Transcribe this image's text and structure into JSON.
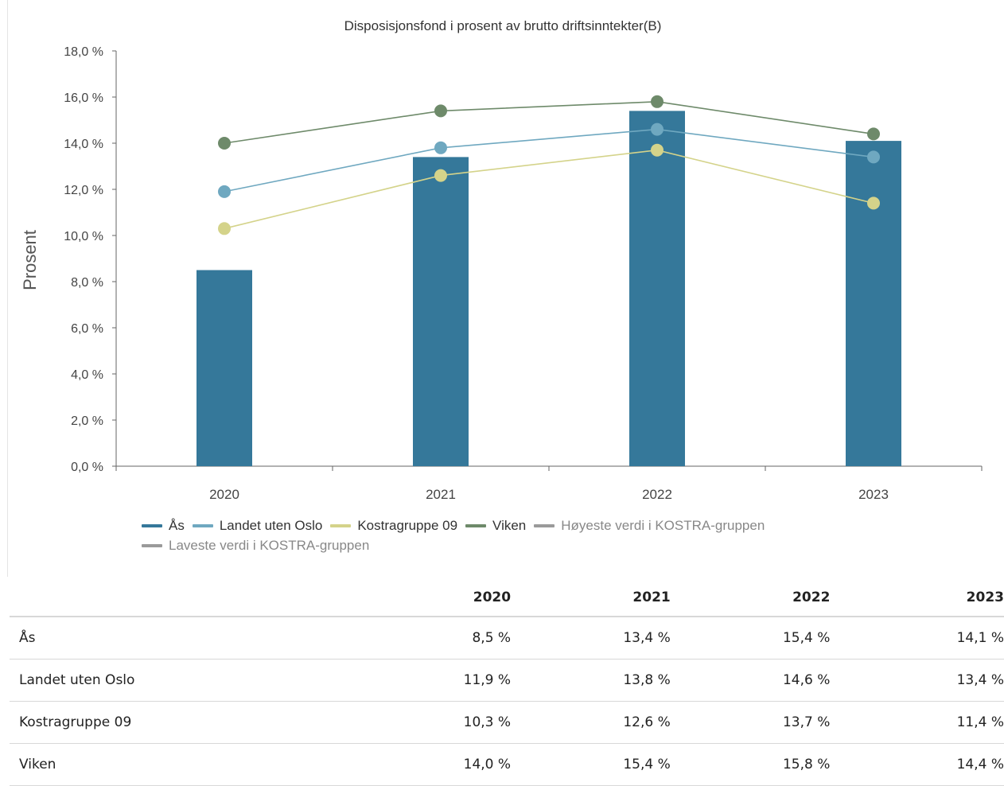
{
  "chart_data": {
    "type": "bar",
    "title": "Disposisjonsfond i prosent av brutto driftsinntekter(B)",
    "ylabel": "Prosent",
    "xlabel": "",
    "categories": [
      "2020",
      "2021",
      "2022",
      "2023"
    ],
    "ylim": [
      0,
      18
    ],
    "yticks": [
      "0,0 %",
      "2,0 %",
      "4,0 %",
      "6,0 %",
      "8,0 %",
      "10,0 %",
      "12,0 %",
      "14,0 %",
      "16,0 %",
      "18,0 %"
    ],
    "series": [
      {
        "name": "Ås",
        "kind": "bar",
        "color": "#35789a",
        "values": [
          8.5,
          13.4,
          15.4,
          14.1
        ]
      },
      {
        "name": "Landet uten Oslo",
        "kind": "line",
        "color": "#6fa8c0",
        "values": [
          11.9,
          13.8,
          14.6,
          13.4
        ]
      },
      {
        "name": "Kostragruppe 09",
        "kind": "line",
        "color": "#d4d38a",
        "values": [
          10.3,
          12.6,
          13.7,
          11.4
        ]
      },
      {
        "name": "Viken",
        "kind": "line",
        "color": "#6e8a6a",
        "values": [
          14.0,
          15.4,
          15.8,
          14.4
        ]
      }
    ],
    "legend": [
      {
        "label": "Ås",
        "color": "#35789a",
        "muted": false
      },
      {
        "label": "Landet uten Oslo",
        "color": "#6fa8c0",
        "muted": false
      },
      {
        "label": "Kostragruppe 09",
        "color": "#d4d38a",
        "muted": false
      },
      {
        "label": "Viken",
        "color": "#6e8a6a",
        "muted": false
      },
      {
        "label": "Høyeste verdi i KOSTRA-gruppen",
        "color": "#9a9a9a",
        "muted": true
      },
      {
        "label": "Laveste verdi i KOSTRA-gruppen",
        "color": "#9a9a9a",
        "muted": true
      }
    ],
    "grid": false,
    "legend_position": "bottom-left"
  },
  "table": {
    "headers": [
      "",
      "2020",
      "2021",
      "2022",
      "2023"
    ],
    "rows": [
      {
        "label": "Ås",
        "values": [
          "8,5 %",
          "13,4 %",
          "15,4 %",
          "14,1 %"
        ]
      },
      {
        "label": "Landet uten Oslo",
        "values": [
          "11,9 %",
          "13,8 %",
          "14,6 %",
          "13,4 %"
        ]
      },
      {
        "label": "Kostragruppe 09",
        "values": [
          "10,3 %",
          "12,6 %",
          "13,7 %",
          "11,4 %"
        ]
      },
      {
        "label": "Viken",
        "values": [
          "14,0 %",
          "15,4 %",
          "15,8 %",
          "14,4 %"
        ]
      }
    ]
  }
}
